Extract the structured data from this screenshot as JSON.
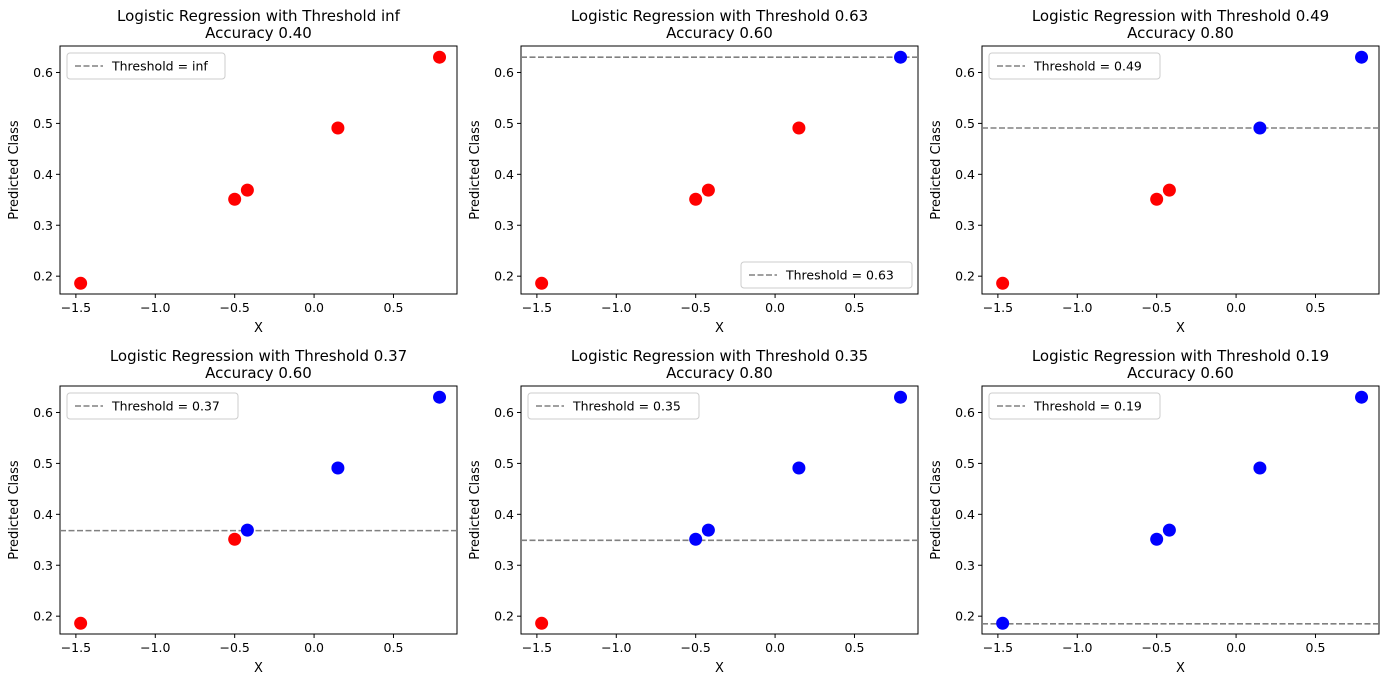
{
  "chart_data": [
    {
      "type": "scatter",
      "title": "Logistic Regression with Threshold inf",
      "subtitle": "Accuracy 0.40",
      "xlabel": "X",
      "ylabel": "Predicted Class",
      "xlim": [
        -1.6,
        0.9
      ],
      "ylim": [
        0.165,
        0.652
      ],
      "xticks": [
        -1.5,
        -1.0,
        -0.5,
        0.0,
        0.5
      ],
      "xticklabels": [
        "−1.5",
        "−1.0",
        "−0.5",
        "0.0",
        "0.5"
      ],
      "yticks": [
        0.2,
        0.3,
        0.4,
        0.5,
        0.6
      ],
      "yticklabels": [
        "0.2",
        "0.3",
        "0.4",
        "0.5",
        "0.6"
      ],
      "threshold": null,
      "legend": {
        "label": "Threshold = inf",
        "position": "upper-left"
      },
      "points": [
        {
          "x": -1.47,
          "y": 0.186,
          "color": "red"
        },
        {
          "x": -0.5,
          "y": 0.351,
          "color": "red"
        },
        {
          "x": -0.42,
          "y": 0.369,
          "color": "red"
        },
        {
          "x": 0.15,
          "y": 0.491,
          "color": "red"
        },
        {
          "x": 0.79,
          "y": 0.63,
          "color": "red"
        }
      ]
    },
    {
      "type": "scatter",
      "title": "Logistic Regression with Threshold 0.63",
      "subtitle": "Accuracy 0.60",
      "xlabel": "X",
      "ylabel": "Predicted Class",
      "xlim": [
        -1.6,
        0.9
      ],
      "ylim": [
        0.165,
        0.652
      ],
      "xticks": [
        -1.5,
        -1.0,
        -0.5,
        0.0,
        0.5
      ],
      "xticklabels": [
        "−1.5",
        "−1.0",
        "−0.5",
        "0.0",
        "0.5"
      ],
      "yticks": [
        0.2,
        0.3,
        0.4,
        0.5,
        0.6
      ],
      "yticklabels": [
        "0.2",
        "0.3",
        "0.4",
        "0.5",
        "0.6"
      ],
      "threshold": 0.63,
      "legend": {
        "label": "Threshold = 0.63",
        "position": "lower-right"
      },
      "points": [
        {
          "x": -1.47,
          "y": 0.186,
          "color": "red"
        },
        {
          "x": -0.5,
          "y": 0.351,
          "color": "red"
        },
        {
          "x": -0.42,
          "y": 0.369,
          "color": "red"
        },
        {
          "x": 0.15,
          "y": 0.491,
          "color": "red"
        },
        {
          "x": 0.79,
          "y": 0.63,
          "color": "blue"
        }
      ]
    },
    {
      "type": "scatter",
      "title": "Logistic Regression with Threshold 0.49",
      "subtitle": "Accuracy 0.80",
      "xlabel": "X",
      "ylabel": "Predicted Class",
      "xlim": [
        -1.6,
        0.9
      ],
      "ylim": [
        0.165,
        0.652
      ],
      "xticks": [
        -1.5,
        -1.0,
        -0.5,
        0.0,
        0.5
      ],
      "xticklabels": [
        "−1.5",
        "−1.0",
        "−0.5",
        "0.0",
        "0.5"
      ],
      "yticks": [
        0.2,
        0.3,
        0.4,
        0.5,
        0.6
      ],
      "yticklabels": [
        "0.2",
        "0.3",
        "0.4",
        "0.5",
        "0.6"
      ],
      "threshold": 0.491,
      "legend": {
        "label": "Threshold = 0.49",
        "position": "upper-left"
      },
      "points": [
        {
          "x": -1.47,
          "y": 0.186,
          "color": "red"
        },
        {
          "x": -0.5,
          "y": 0.351,
          "color": "red"
        },
        {
          "x": -0.42,
          "y": 0.369,
          "color": "red"
        },
        {
          "x": 0.15,
          "y": 0.491,
          "color": "blue"
        },
        {
          "x": 0.79,
          "y": 0.63,
          "color": "blue"
        }
      ]
    },
    {
      "type": "scatter",
      "title": "Logistic Regression with Threshold 0.37",
      "subtitle": "Accuracy 0.60",
      "xlabel": "X",
      "ylabel": "Predicted Class",
      "xlim": [
        -1.6,
        0.9
      ],
      "ylim": [
        0.165,
        0.652
      ],
      "xticks": [
        -1.5,
        -1.0,
        -0.5,
        0.0,
        0.5
      ],
      "xticklabels": [
        "−1.5",
        "−1.0",
        "−0.5",
        "0.0",
        "0.5"
      ],
      "yticks": [
        0.2,
        0.3,
        0.4,
        0.5,
        0.6
      ],
      "yticklabels": [
        "0.2",
        "0.3",
        "0.4",
        "0.5",
        "0.6"
      ],
      "threshold": 0.368,
      "legend": {
        "label": "Threshold = 0.37",
        "position": "upper-left"
      },
      "points": [
        {
          "x": -1.47,
          "y": 0.186,
          "color": "red"
        },
        {
          "x": -0.5,
          "y": 0.351,
          "color": "red"
        },
        {
          "x": -0.42,
          "y": 0.369,
          "color": "blue"
        },
        {
          "x": 0.15,
          "y": 0.491,
          "color": "blue"
        },
        {
          "x": 0.79,
          "y": 0.63,
          "color": "blue"
        }
      ]
    },
    {
      "type": "scatter",
      "title": "Logistic Regression with Threshold 0.35",
      "subtitle": "Accuracy 0.80",
      "xlabel": "X",
      "ylabel": "Predicted Class",
      "xlim": [
        -1.6,
        0.9
      ],
      "ylim": [
        0.165,
        0.652
      ],
      "xticks": [
        -1.5,
        -1.0,
        -0.5,
        0.0,
        0.5
      ],
      "xticklabels": [
        "−1.5",
        "−1.0",
        "−0.5",
        "0.0",
        "0.5"
      ],
      "yticks": [
        0.2,
        0.3,
        0.4,
        0.5,
        0.6
      ],
      "yticklabels": [
        "0.2",
        "0.3",
        "0.4",
        "0.5",
        "0.6"
      ],
      "threshold": 0.349,
      "legend": {
        "label": "Threshold = 0.35",
        "position": "upper-left"
      },
      "points": [
        {
          "x": -1.47,
          "y": 0.186,
          "color": "red"
        },
        {
          "x": -0.5,
          "y": 0.351,
          "color": "blue"
        },
        {
          "x": -0.42,
          "y": 0.369,
          "color": "blue"
        },
        {
          "x": 0.15,
          "y": 0.491,
          "color": "blue"
        },
        {
          "x": 0.79,
          "y": 0.63,
          "color": "blue"
        }
      ]
    },
    {
      "type": "scatter",
      "title": "Logistic Regression with Threshold 0.19",
      "subtitle": "Accuracy 0.60",
      "xlabel": "X",
      "ylabel": "Predicted Class",
      "xlim": [
        -1.6,
        0.9
      ],
      "ylim": [
        0.165,
        0.652
      ],
      "xticks": [
        -1.5,
        -1.0,
        -0.5,
        0.0,
        0.5
      ],
      "xticklabels": [
        "−1.5",
        "−1.0",
        "−0.5",
        "0.0",
        "0.5"
      ],
      "yticks": [
        0.2,
        0.3,
        0.4,
        0.5,
        0.6
      ],
      "yticklabels": [
        "0.2",
        "0.3",
        "0.4",
        "0.5",
        "0.6"
      ],
      "threshold": 0.185,
      "legend": {
        "label": "Threshold = 0.19",
        "position": "upper-left"
      },
      "points": [
        {
          "x": -1.47,
          "y": 0.186,
          "color": "blue"
        },
        {
          "x": -0.5,
          "y": 0.351,
          "color": "blue"
        },
        {
          "x": -0.42,
          "y": 0.369,
          "color": "blue"
        },
        {
          "x": 0.15,
          "y": 0.491,
          "color": "blue"
        },
        {
          "x": 0.79,
          "y": 0.63,
          "color": "blue"
        }
      ]
    }
  ],
  "colors": {
    "red": "#ff0000",
    "blue": "#0000ff",
    "threshold_line": "#808080",
    "legend_border": "#cccccc"
  }
}
